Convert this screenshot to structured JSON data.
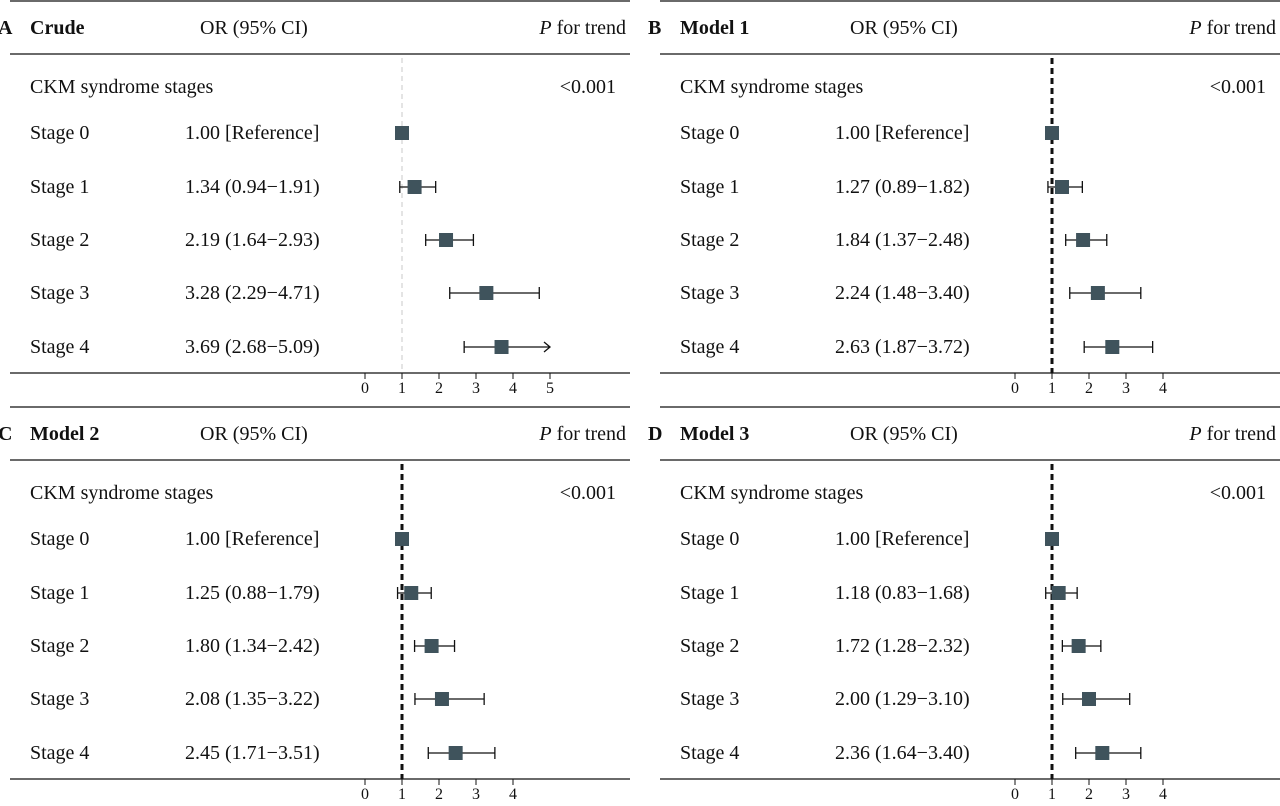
{
  "header_cols": {
    "or_label": "OR (95% CI)",
    "p_italic": "P",
    "p_rest": " for trend"
  },
  "chart_data": [
    {
      "type": "forest",
      "panel": "A",
      "title": "Crude",
      "group_label": "CKM syndrome stages",
      "p_for_trend": "<0.001",
      "reference_line": "dashed-light",
      "xlim": [
        0,
        5
      ],
      "xticks": [
        0,
        1,
        2,
        3,
        4,
        5
      ],
      "rows": [
        {
          "label": "Stage 0",
          "text": "1.00 [Reference]",
          "or": 1.0,
          "lo": 1.0,
          "hi": 1.0
        },
        {
          "label": "Stage 1",
          "text": "1.34 (0.94−1.91)",
          "or": 1.34,
          "lo": 0.94,
          "hi": 1.91
        },
        {
          "label": "Stage 2",
          "text": "2.19 (1.64−2.93)",
          "or": 2.19,
          "lo": 1.64,
          "hi": 2.93
        },
        {
          "label": "Stage 3",
          "text": "3.28 (2.29−4.71)",
          "or": 3.28,
          "lo": 2.29,
          "hi": 4.71
        },
        {
          "label": "Stage 4",
          "text": "3.69 (2.68−5.09)",
          "or": 3.69,
          "lo": 2.68,
          "hi": 5.09,
          "arrow": true
        }
      ]
    },
    {
      "type": "forest",
      "panel": "B",
      "title": "Model 1",
      "group_label": "CKM syndrome stages",
      "p_for_trend": "<0.001",
      "reference_line": "dotted-bold",
      "xlim": [
        0,
        4
      ],
      "xticks": [
        0,
        1,
        2,
        3,
        4
      ],
      "rows": [
        {
          "label": "Stage 0",
          "text": "1.00 [Reference]",
          "or": 1.0,
          "lo": 1.0,
          "hi": 1.0
        },
        {
          "label": "Stage 1",
          "text": "1.27 (0.89−1.82)",
          "or": 1.27,
          "lo": 0.89,
          "hi": 1.82
        },
        {
          "label": "Stage 2",
          "text": "1.84 (1.37−2.48)",
          "or": 1.84,
          "lo": 1.37,
          "hi": 2.48
        },
        {
          "label": "Stage 3",
          "text": "2.24 (1.48−3.40)",
          "or": 2.24,
          "lo": 1.48,
          "hi": 3.4
        },
        {
          "label": "Stage 4",
          "text": "2.63 (1.87−3.72)",
          "or": 2.63,
          "lo": 1.87,
          "hi": 3.72
        }
      ]
    },
    {
      "type": "forest",
      "panel": "C",
      "title": "Model 2",
      "group_label": "CKM syndrome stages",
      "p_for_trend": "<0.001",
      "reference_line": "dotted-bold",
      "xlim": [
        0,
        4
      ],
      "xticks": [
        0,
        1,
        2,
        3,
        4
      ],
      "rows": [
        {
          "label": "Stage 0",
          "text": "1.00 [Reference]",
          "or": 1.0,
          "lo": 1.0,
          "hi": 1.0
        },
        {
          "label": "Stage 1",
          "text": "1.25 (0.88−1.79)",
          "or": 1.25,
          "lo": 0.88,
          "hi": 1.79
        },
        {
          "label": "Stage 2",
          "text": "1.80 (1.34−2.42)",
          "or": 1.8,
          "lo": 1.34,
          "hi": 2.42
        },
        {
          "label": "Stage 3",
          "text": "2.08 (1.35−3.22)",
          "or": 2.08,
          "lo": 1.35,
          "hi": 3.22
        },
        {
          "label": "Stage 4",
          "text": "2.45 (1.71−3.51)",
          "or": 2.45,
          "lo": 1.71,
          "hi": 3.51
        }
      ]
    },
    {
      "type": "forest",
      "panel": "D",
      "title": "Model 3",
      "group_label": "CKM syndrome stages",
      "p_for_trend": "<0.001",
      "reference_line": "dotted-bold",
      "xlim": [
        0,
        4
      ],
      "xticks": [
        0,
        1,
        2,
        3,
        4
      ],
      "rows": [
        {
          "label": "Stage 0",
          "text": "1.00 [Reference]",
          "or": 1.0,
          "lo": 1.0,
          "hi": 1.0
        },
        {
          "label": "Stage 1",
          "text": "1.18 (0.83−1.68)",
          "or": 1.18,
          "lo": 0.83,
          "hi": 1.68
        },
        {
          "label": "Stage 2",
          "text": "1.72 (1.28−2.32)",
          "or": 1.72,
          "lo": 1.28,
          "hi": 2.32
        },
        {
          "label": "Stage 3",
          "text": "2.00 (1.29−3.10)",
          "or": 2.0,
          "lo": 1.29,
          "hi": 3.1
        },
        {
          "label": "Stage 4",
          "text": "2.36 (1.64−3.40)",
          "or": 2.36,
          "lo": 1.64,
          "hi": 3.4
        }
      ]
    }
  ],
  "colors": {
    "marker": "#3f535c",
    "line": "#111111",
    "ref_light": "#c8c8c8"
  }
}
